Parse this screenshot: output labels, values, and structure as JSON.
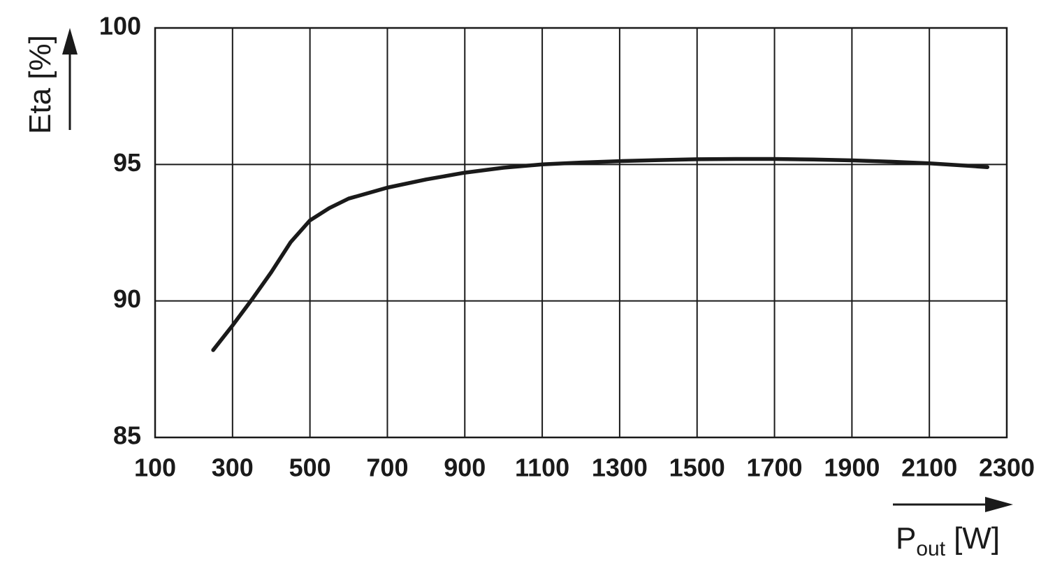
{
  "chart_data": {
    "type": "line",
    "ylabel": "Eta [%]",
    "xlabel": "P",
    "xlabel_subscript": "out",
    "xlabel_unit": "[W]",
    "x": [
      250,
      300,
      350,
      400,
      450,
      500,
      550,
      600,
      650,
      700,
      800,
      900,
      1000,
      1100,
      1200,
      1300,
      1400,
      1500,
      1600,
      1700,
      1800,
      1900,
      2000,
      2100,
      2200,
      2250
    ],
    "values": [
      88.2,
      89.1,
      90.05,
      91.05,
      92.15,
      92.95,
      93.4,
      93.75,
      93.95,
      94.15,
      94.45,
      94.7,
      94.88,
      95.0,
      95.07,
      95.12,
      95.16,
      95.19,
      95.2,
      95.2,
      95.18,
      95.15,
      95.1,
      95.04,
      94.95,
      94.9
    ],
    "color": "#1a1a1a",
    "xlim": [
      100,
      2300
    ],
    "xticks": [
      100,
      300,
      500,
      700,
      900,
      1100,
      1300,
      1500,
      1700,
      1900,
      2100,
      2300
    ],
    "ylim": [
      85,
      100
    ],
    "yticks": [
      85,
      90,
      95,
      100
    ],
    "grid": true
  }
}
